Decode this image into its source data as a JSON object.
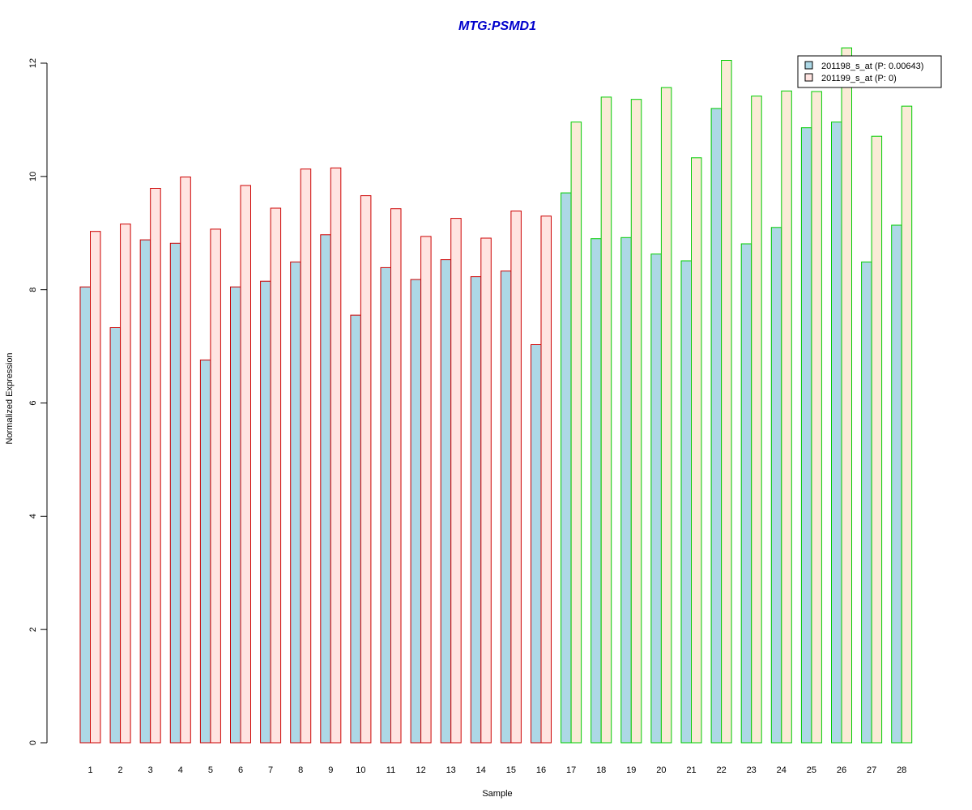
{
  "chart_data": {
    "type": "bar",
    "title": "MTG:PSMD1",
    "title_color": "#0000CC",
    "xlabel": "Sample",
    "ylabel": "Normalized Expression",
    "ylim": [
      0,
      12
    ],
    "yticks": [
      0,
      2,
      4,
      6,
      8,
      10,
      12
    ],
    "grid": false,
    "legend_position": "top-right",
    "categories": [
      "1",
      "2",
      "3",
      "4",
      "5",
      "6",
      "7",
      "8",
      "9",
      "10",
      "11",
      "12",
      "13",
      "14",
      "15",
      "16",
      "17",
      "18",
      "19",
      "20",
      "21",
      "22",
      "23",
      "24",
      "25",
      "26",
      "27",
      "28"
    ],
    "group_border_colors": {
      "samples_1_16": "#CC0000",
      "samples_17_28": "#00CC00"
    },
    "series": [
      {
        "name": "201198_s_at (P: 0.00643)",
        "fill": "#ADD8E6",
        "values": [
          8.05,
          7.33,
          8.88,
          8.82,
          6.76,
          8.05,
          8.15,
          8.49,
          8.97,
          7.55,
          8.39,
          8.18,
          8.53,
          8.23,
          8.33,
          7.03,
          9.71,
          8.9,
          8.92,
          8.63,
          8.51,
          11.2,
          8.81,
          9.1,
          10.86,
          10.96,
          8.49,
          9.14
        ]
      },
      {
        "name": "201199_s_at (P: 0)",
        "fill": "#FFE4E1",
        "fill_alt": "#FAEBD7",
        "values": [
          9.03,
          9.16,
          9.79,
          9.99,
          9.07,
          9.84,
          9.44,
          10.13,
          10.15,
          9.66,
          9.43,
          8.94,
          9.26,
          8.91,
          9.39,
          9.3,
          10.96,
          11.4,
          11.36,
          11.57,
          10.33,
          12.05,
          11.42,
          11.51,
          11.5,
          12.27,
          10.71,
          11.24
        ]
      }
    ]
  }
}
